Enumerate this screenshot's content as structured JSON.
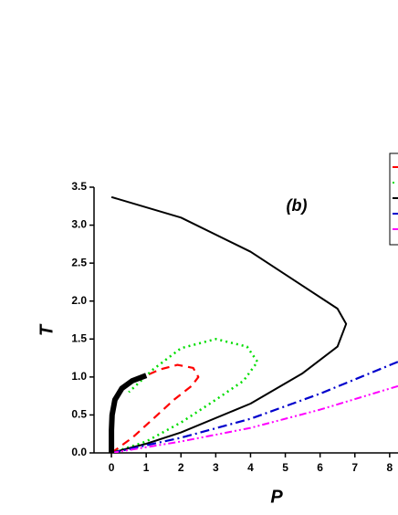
{
  "chart_data": {
    "type": "line",
    "annotation": "(b)",
    "x_label": "P",
    "y_label": "T",
    "xlim": [
      -0.5,
      8.24
    ],
    "ylim": [
      0,
      3.5
    ],
    "xticks": [
      0,
      1,
      2,
      3,
      4,
      5,
      6,
      7,
      8
    ],
    "yticks": [
      {
        "value": 0,
        "label": "0.0"
      },
      0.5,
      {
        "value": 1,
        "label": "1.0"
      },
      1.5,
      {
        "value": 2,
        "label": "2.0"
      },
      2.5,
      {
        "value": 3,
        "label": "3.0"
      },
      3.5
    ],
    "series": [
      {
        "color": "#ff0000",
        "dash": "9,6",
        "width": 2.2,
        "x": [
          0,
          0.6,
          1.2,
          1.8,
          2.3,
          2.5,
          2.35,
          1.9,
          1.4,
          1.0
        ],
        "values": [
          0,
          0.2,
          0.45,
          0.7,
          0.88,
          1.0,
          1.12,
          1.16,
          1.1,
          1.02
        ]
      },
      {
        "color": "#00dd00",
        "dash": "2,4",
        "width": 2.5,
        "x": [
          0,
          1,
          2,
          3,
          3.8,
          4.2,
          3.9,
          3,
          2,
          1.2,
          0.5
        ],
        "values": [
          0,
          0.15,
          0.4,
          0.7,
          0.95,
          1.2,
          1.4,
          1.5,
          1.38,
          1.1,
          0.8
        ]
      },
      {
        "color": "#000000",
        "dash": "",
        "width": 2,
        "x": [
          0,
          0.4,
          1,
          2,
          4,
          5.5,
          6.5,
          6.75,
          6.5,
          5.5,
          4,
          2,
          0
        ],
        "values": [
          0,
          0.05,
          0.12,
          0.27,
          0.65,
          1.05,
          1.4,
          1.7,
          1.9,
          2.2,
          2.65,
          3.1,
          3.37
        ]
      },
      {
        "color": "#0000cc",
        "dash": "10,4,2,4",
        "width": 2.2,
        "x": [
          0,
          2,
          4,
          6,
          8.24
        ],
        "values": [
          0,
          0.2,
          0.45,
          0.78,
          1.2
        ]
      },
      {
        "color": "#ff00ff",
        "dash": "8,3,2,3,2,3",
        "width": 2,
        "x": [
          0,
          2,
          4,
          6,
          8.24
        ],
        "values": [
          0,
          0.15,
          0.33,
          0.57,
          0.88
        ]
      },
      {
        "color": "#000000",
        "dash": "",
        "width": 6,
        "x": [
          0,
          0,
          0.02,
          0.1,
          0.3,
          0.6,
          1.0
        ],
        "values": [
          0,
          0.3,
          0.5,
          0.7,
          0.85,
          0.95,
          1.02
        ]
      }
    ]
  }
}
